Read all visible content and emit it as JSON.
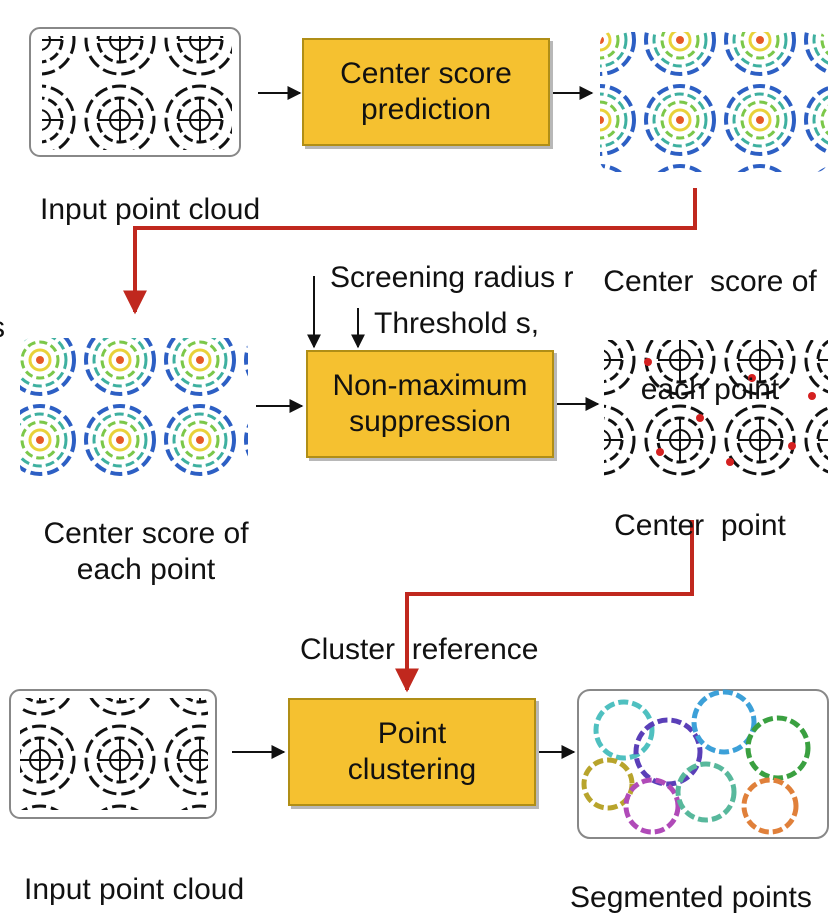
{
  "row1": {
    "box": {
      "line1": "Center score",
      "line2": "prediction"
    },
    "input_label": "Input point cloud",
    "output_label": {
      "line1": "Center  score of",
      "line2": "each point"
    }
  },
  "row2": {
    "params": {
      "radius": "Screening radius r",
      "threshold": "Threshold s,"
    },
    "box": {
      "line1": "Non-maximum",
      "line2": "suppression"
    },
    "input_label": {
      "line1": "Center score of",
      "line2": "each point"
    },
    "output_label": "Center  point",
    "edge_glyph": "s"
  },
  "row3": {
    "reference": "Cluster  reference",
    "box": {
      "line1": "Point",
      "line2": "clustering"
    },
    "input_label": "Input point cloud",
    "output_label": "Segmented points"
  },
  "colors": {
    "box_fill": "#f5c130",
    "connector": "#c0281e",
    "arrow": "#111111"
  }
}
